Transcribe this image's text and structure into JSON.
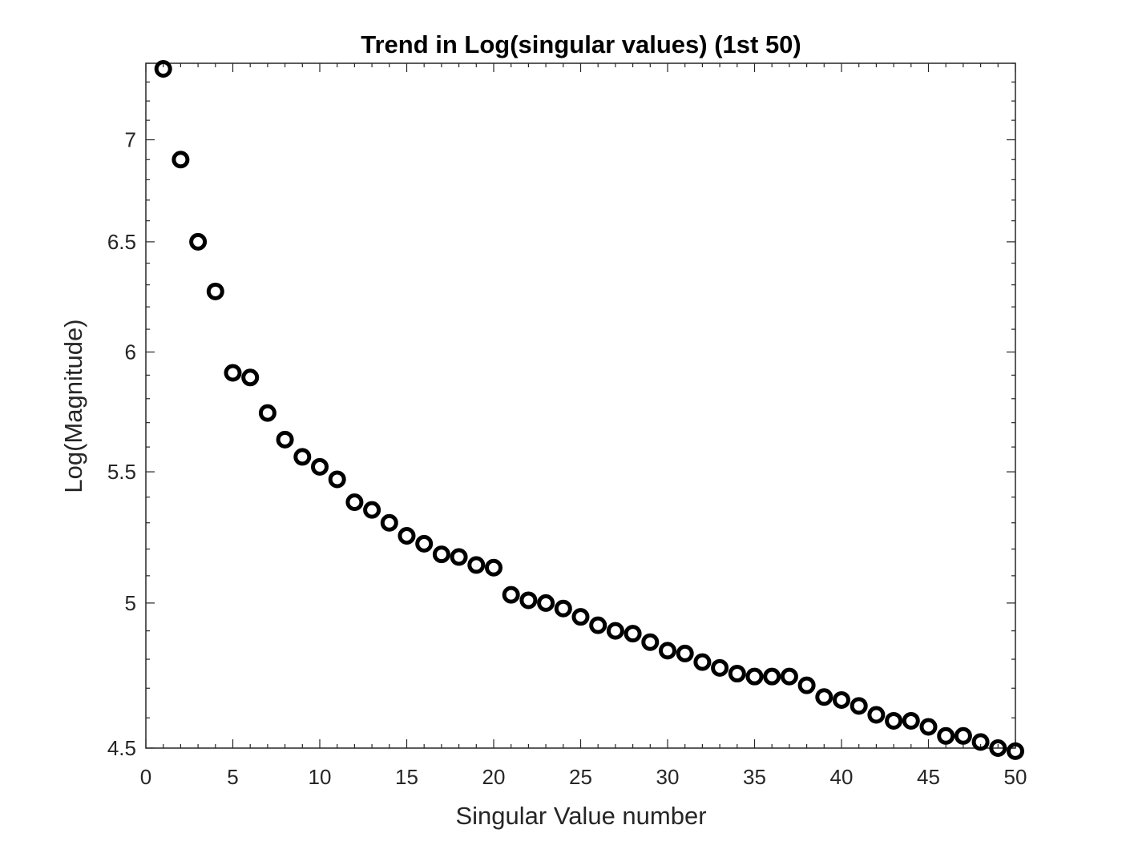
{
  "chart_data": {
    "type": "scatter",
    "title": "Trend in Log(singular values) (1st 50)",
    "xlabel": "Singular Value number",
    "ylabel": "Log(Magnitude)",
    "xlim": [
      0,
      50
    ],
    "ylim": [
      4.5,
      7.4
    ],
    "y_scale": "log",
    "xticks": [
      0,
      5,
      10,
      15,
      20,
      25,
      30,
      35,
      40,
      45,
      50
    ],
    "yticks": [
      4.5,
      5,
      5.5,
      6,
      6.5,
      7
    ],
    "xtick_labels": [
      "0",
      "5",
      "10",
      "15",
      "20",
      "25",
      "30",
      "35",
      "40",
      "45",
      "50"
    ],
    "ytick_labels": [
      "4.5",
      "5",
      "5.5",
      "6",
      "6.5",
      "7"
    ],
    "grid": false,
    "marker": "open-circle",
    "marker_color": "#000000",
    "x": [
      1,
      2,
      3,
      4,
      5,
      6,
      7,
      8,
      9,
      10,
      11,
      12,
      13,
      14,
      15,
      16,
      17,
      18,
      19,
      20,
      21,
      22,
      23,
      24,
      25,
      26,
      27,
      28,
      29,
      30,
      31,
      32,
      33,
      34,
      35,
      36,
      37,
      38,
      39,
      40,
      41,
      42,
      43,
      44,
      45,
      46,
      47,
      48,
      49,
      50
    ],
    "y": [
      7.37,
      6.9,
      6.5,
      6.27,
      5.91,
      5.89,
      5.74,
      5.63,
      5.56,
      5.52,
      5.47,
      5.38,
      5.35,
      5.3,
      5.25,
      5.22,
      5.18,
      5.17,
      5.14,
      5.13,
      5.03,
      5.01,
      5.0,
      4.98,
      4.95,
      4.92,
      4.9,
      4.89,
      4.86,
      4.83,
      4.82,
      4.79,
      4.77,
      4.75,
      4.74,
      4.74,
      4.74,
      4.71,
      4.67,
      4.66,
      4.64,
      4.61,
      4.59,
      4.59,
      4.57,
      4.54,
      4.54,
      4.52,
      4.5,
      4.49
    ]
  }
}
